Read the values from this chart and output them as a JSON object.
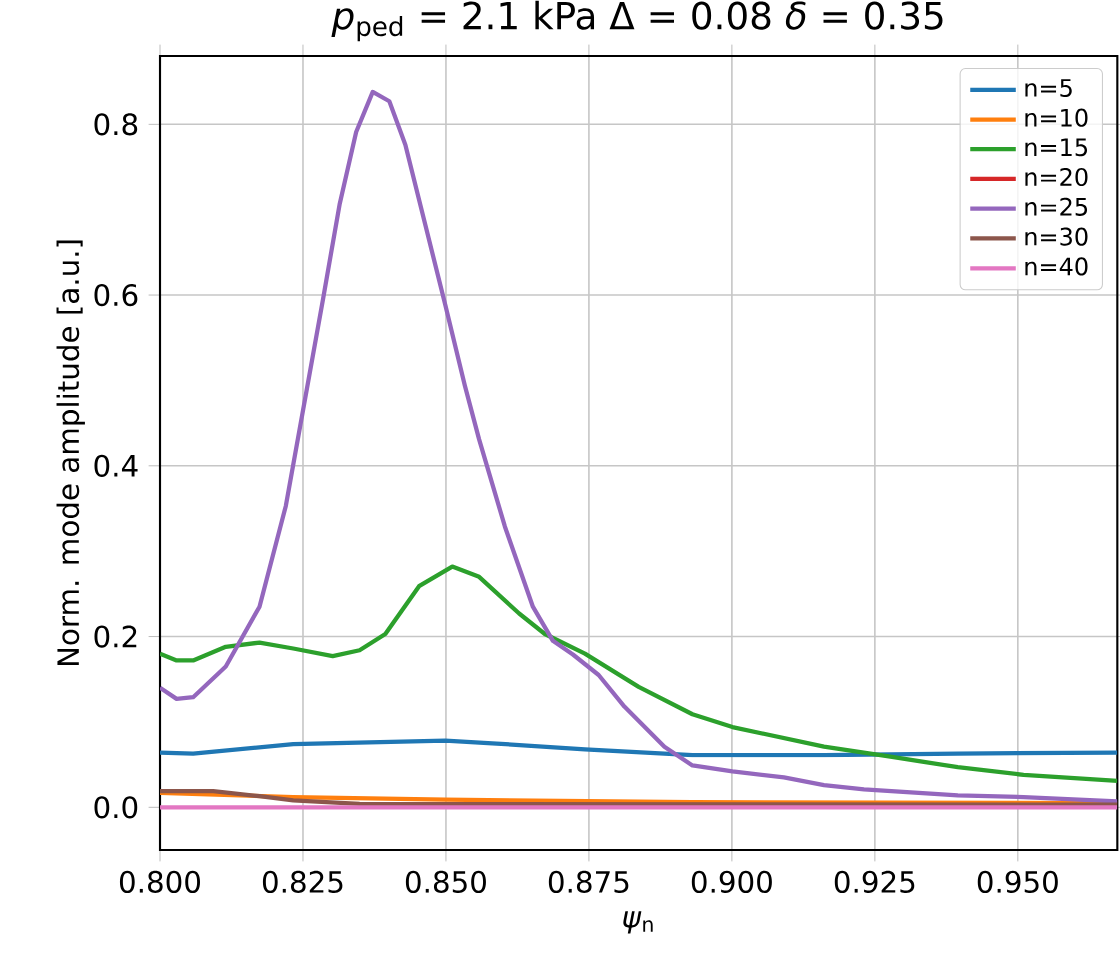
{
  "chart_data": {
    "type": "line",
    "title": "*p*$_{ped}$ = 2.1 kPa Δ = 0.08 *δ* = 0.35",
    "xlabel": "*ψ*$_{n}$",
    "ylabel": "Norm. mode amplitude [a.u.]",
    "xlim": [
      0.8,
      0.9674
    ],
    "ylim": [
      -0.05,
      0.88
    ],
    "xticks": [
      {
        "value": 0.8,
        "label": "0.800"
      },
      0.825,
      {
        "value": 0.85,
        "label": "0.850"
      },
      0.875,
      {
        "value": 0.9,
        "label": "0.900"
      },
      0.925,
      {
        "value": 0.95,
        "label": "0.950"
      }
    ],
    "yticks": [
      {
        "value": 0.0,
        "label": "0.0"
      },
      0.2,
      0.4,
      0.6,
      0.8
    ],
    "grid": true,
    "legend": "top right",
    "marker": "none",
    "line_style": "solid",
    "series": [
      {
        "name": "n=5",
        "color": "#1f77b4",
        "x": [
          0.8,
          0.8058,
          0.8233,
          0.8499,
          0.8581,
          0.8743,
          0.8931,
          0.9161,
          0.9395,
          0.9674
        ],
        "values": [
          0.064,
          0.063,
          0.074,
          0.078,
          0.075,
          0.068,
          0.061,
          0.061,
          0.063,
          0.064
        ]
      },
      {
        "name": "n=10",
        "color": "#ff7f0e",
        "x": [
          0.8,
          0.8233,
          0.8499,
          0.8931,
          0.9674
        ],
        "values": [
          0.017,
          0.012,
          0.009,
          0.006,
          0.005
        ]
      },
      {
        "name": "n=15",
        "color": "#2ca02c",
        "x": [
          0.8,
          0.8029,
          0.8058,
          0.8115,
          0.8174,
          0.8233,
          0.8302,
          0.8349,
          0.8394,
          0.8453,
          0.8511,
          0.8558,
          0.8628,
          0.8673,
          0.8743,
          0.8837,
          0.8931,
          0.9001,
          0.9161,
          0.928,
          0.9395,
          0.951,
          0.9674
        ],
        "values": [
          0.18,
          0.172,
          0.172,
          0.188,
          0.193,
          0.186,
          0.177,
          0.184,
          0.203,
          0.259,
          0.282,
          0.27,
          0.227,
          0.203,
          0.18,
          0.141,
          0.109,
          0.094,
          0.071,
          0.059,
          0.047,
          0.038,
          0.031
        ]
      },
      {
        "name": "n=20",
        "color": "#d62728",
        "values": [
          null
        ]
      },
      {
        "name": "n=25",
        "color": "#9467bd",
        "x": [
          0.8,
          0.8029,
          0.8058,
          0.8115,
          0.8174,
          0.822,
          0.8285,
          0.8314,
          0.8343,
          0.8372,
          0.8401,
          0.8429,
          0.8464,
          0.8499,
          0.8533,
          0.8558,
          0.8603,
          0.8652,
          0.8687,
          0.8722,
          0.8767,
          0.8812,
          0.8882,
          0.8931,
          0.9001,
          0.9091,
          0.9161,
          0.9231,
          0.9395,
          0.951,
          0.9674
        ],
        "values": [
          0.14,
          0.127,
          0.129,
          0.165,
          0.235,
          0.353,
          0.595,
          0.706,
          0.791,
          0.838,
          0.827,
          0.776,
          0.682,
          0.588,
          0.494,
          0.431,
          0.329,
          0.235,
          0.195,
          0.179,
          0.155,
          0.118,
          0.071,
          0.049,
          0.042,
          0.035,
          0.026,
          0.021,
          0.014,
          0.012,
          0.007
        ]
      },
      {
        "name": "n=30",
        "color": "#8c564b",
        "x": [
          0.8,
          0.8093,
          0.8174,
          0.8233,
          0.8349,
          0.9674
        ],
        "values": [
          0.019,
          0.019,
          0.013,
          0.008,
          0.004,
          0.003
        ]
      },
      {
        "name": "n=40",
        "color": "#e377c2",
        "x": [
          0.8,
          0.9674
        ],
        "values": [
          0.0,
          0.0
        ]
      }
    ]
  }
}
